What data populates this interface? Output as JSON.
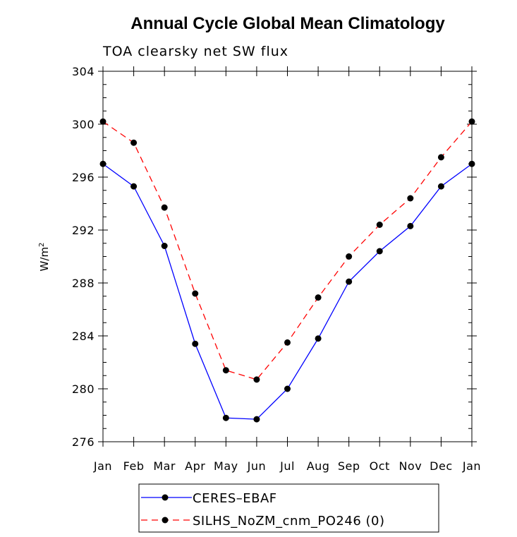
{
  "chart_data": {
    "type": "line",
    "title": "Annual Cycle Global Mean Climatology",
    "subtitle": "TOA clearsky net SW flux",
    "ylabel": "W/m",
    "ylabel_sup": "2",
    "xlabel": "",
    "ylim": [
      276,
      304
    ],
    "yticks": [
      276,
      280,
      284,
      288,
      292,
      296,
      300,
      304
    ],
    "y_minor_step": 1,
    "categories": [
      "Jan",
      "Feb",
      "Mar",
      "Apr",
      "May",
      "Jun",
      "Jul",
      "Aug",
      "Sep",
      "Oct",
      "Nov",
      "Dec",
      "Jan"
    ],
    "grid": false,
    "legend_position": "bottom",
    "series": [
      {
        "name": "CERES–EBAF",
        "color": "#0000ff",
        "dash": "solid",
        "marker": "filled-circle",
        "values": [
          297.0,
          295.3,
          290.8,
          283.4,
          277.8,
          277.7,
          280.0,
          283.8,
          288.1,
          290.4,
          292.3,
          295.3,
          297.0
        ]
      },
      {
        "name": "SILHS_NoZM_cnm_PO246 (0)",
        "color": "#ff0000",
        "dash": "dashed",
        "marker": "filled-circle",
        "values": [
          300.2,
          298.6,
          293.7,
          287.2,
          281.4,
          280.7,
          283.5,
          286.9,
          290.0,
          292.4,
          294.4,
          297.5,
          300.2
        ]
      }
    ]
  }
}
